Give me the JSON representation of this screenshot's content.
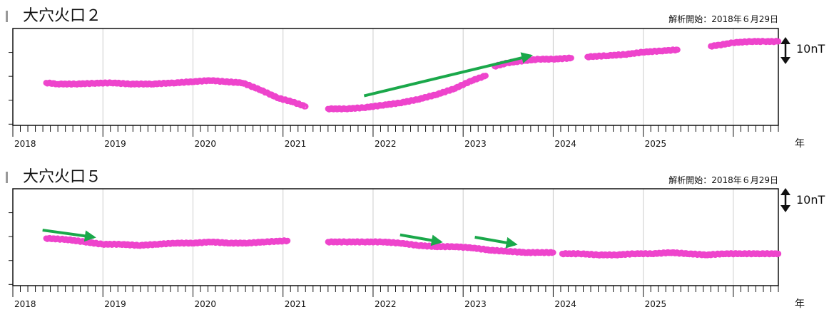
{
  "chart_data": [
    {
      "type": "scatter",
      "title": "大穴火口２",
      "analysis_start": "解析開始：2018年６月29日",
      "x_tick_labels": [
        "2018",
        "2019",
        "2020",
        "2021",
        "2022",
        "2023",
        "2024",
        "2025"
      ],
      "x_unit": "年",
      "xlim": [
        2018.0,
        2026.5
      ],
      "ylim": [
        -8,
        33
      ],
      "scale_bar": {
        "label": "10nT",
        "value": 10
      },
      "grid": true,
      "marker_color": "#ee44cc",
      "series": [
        {
          "segments": [
            {
              "x": [
                2018.37,
                2018.5,
                2018.7,
                2018.9,
                2019.1,
                2019.3,
                2019.55,
                2019.8,
                2020.0,
                2020.2,
                2020.35,
                2020.55,
                2020.75,
                2020.95,
                2021.1,
                2021.25
              ],
              "y": [
                10,
                9.5,
                9.5,
                9.8,
                10,
                9.5,
                9.5,
                10,
                10.5,
                11,
                10.5,
                10,
                7,
                3.5,
                2,
                0
              ]
            },
            {
              "x": [
                2021.5,
                2021.7,
                2021.9,
                2022.1,
                2022.3,
                2022.5,
                2022.7,
                2022.9,
                2023.1,
                2023.25
              ],
              "y": [
                -1,
                -1,
                -0.5,
                0.5,
                1.5,
                3,
                5,
                7.5,
                11,
                13
              ]
            },
            {
              "x": [
                2023.35,
                2023.5,
                2023.7,
                2023.85,
                2024.0,
                2024.2
              ],
              "y": [
                17,
                18.5,
                19.5,
                20,
                20,
                20.5
              ]
            },
            {
              "x": [
                2024.38,
                2024.6,
                2024.8,
                2025.0,
                2025.2,
                2025.38
              ],
              "y": [
                21,
                21.5,
                22,
                23,
                23.5,
                24
              ]
            },
            {
              "x": [
                2025.75,
                2025.85,
                2026.0,
                2026.2,
                2026.35,
                2026.5
              ],
              "y": [
                25.5,
                26,
                27,
                27.5,
                27.5,
                27.5
              ]
            }
          ]
        }
      ],
      "trend_arrows": [
        {
          "x1": 2021.9,
          "y1": 4.5,
          "x2": 2023.75,
          "y2": 21.5,
          "color": "#1aa84a"
        }
      ]
    },
    {
      "type": "scatter",
      "title": "大穴火口５",
      "analysis_start": "解析開始：2018年６月29日",
      "x_tick_labels": [
        "2018",
        "2019",
        "2020",
        "2021",
        "2022",
        "2023",
        "2024",
        "2025"
      ],
      "x_unit": "年",
      "xlim": [
        2018.0,
        2026.5
      ],
      "ylim": [
        -20,
        21
      ],
      "scale_bar": {
        "label": "10nT",
        "value": 10
      },
      "grid": true,
      "marker_color": "#ee44cc",
      "series": [
        {
          "segments": [
            {
              "x": [
                2018.37,
                2018.6,
                2018.8,
                2019.0,
                2019.2,
                2019.4,
                2019.6,
                2019.8,
                2020.0,
                2020.2,
                2020.4,
                2020.6,
                2020.8,
                2021.05
              ],
              "y": [
                0,
                -0.5,
                -1.5,
                -2.5,
                -2.5,
                -3,
                -2.5,
                -2,
                -2,
                -1.5,
                -2,
                -2,
                -1.5,
                -1
              ]
            },
            {
              "x": [
                2021.5,
                2021.7,
                2021.9,
                2022.1,
                2022.3,
                2022.5,
                2022.7,
                2022.9,
                2023.1,
                2023.3,
                2023.5,
                2023.7,
                2023.85,
                2024.0
              ],
              "y": [
                -1.5,
                -1.5,
                -1.5,
                -1.5,
                -2,
                -3,
                -3.5,
                -3.5,
                -4,
                -5,
                -5.5,
                -6,
                -6,
                -6
              ]
            },
            {
              "x": [
                2024.1,
                2024.3,
                2024.5,
                2024.7,
                2024.9,
                2025.1,
                2025.3,
                2025.5,
                2025.7,
                2025.9,
                2026.1,
                2026.3,
                2026.5
              ],
              "y": [
                -6.5,
                -6.5,
                -7,
                -7,
                -6.5,
                -6.5,
                -6,
                -6.5,
                -7,
                -6.5,
                -6.5,
                -6.5,
                -6.5
              ]
            }
          ]
        }
      ],
      "trend_arrows": [
        {
          "x1": 2018.33,
          "y1": 3.5,
          "x2": 2018.9,
          "y2": 0.5,
          "color": "#1aa84a"
        },
        {
          "x1": 2022.3,
          "y1": 1.5,
          "x2": 2022.75,
          "y2": -1.5,
          "color": "#1aa84a"
        },
        {
          "x1": 2023.13,
          "y1": 0.5,
          "x2": 2023.58,
          "y2": -2.5,
          "color": "#1aa84a"
        }
      ]
    }
  ]
}
